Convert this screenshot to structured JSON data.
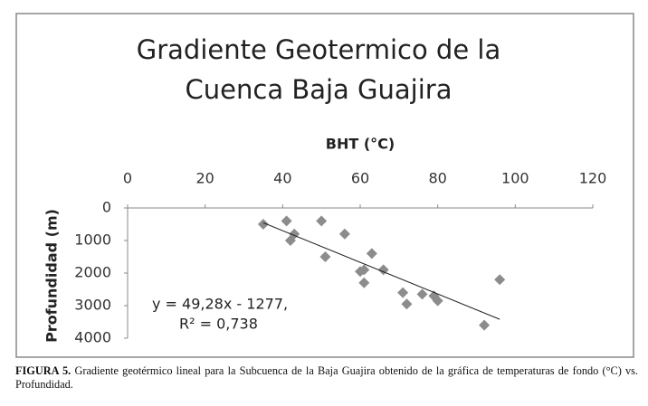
{
  "chart_data": {
    "type": "scatter",
    "title": [
      "Gradiente Geotermico de la",
      "Cuenca Baja Guajira"
    ],
    "x_label": "BHT (°C)",
    "y_label": "Profundidad (m)",
    "x": [
      35,
      41,
      42,
      43,
      50,
      51,
      56,
      60,
      61,
      61,
      63,
      66,
      71,
      72,
      76,
      79,
      80,
      92,
      96
    ],
    "values": [
      500,
      400,
      1000,
      800,
      400,
      1500,
      800,
      1950,
      2300,
      1900,
      1400,
      1900,
      2600,
      2950,
      2650,
      2700,
      2850,
      3600,
      2200
    ],
    "color": "#8c8c8c",
    "xlim": [
      0,
      120
    ],
    "xticks": [
      0,
      20,
      40,
      60,
      80,
      100,
      120
    ],
    "ylim": [
      0,
      4000
    ],
    "yticks": [
      0,
      1000,
      2000,
      3000,
      4000
    ],
    "y_inverted": true,
    "x_axis_position": "top",
    "grid": false,
    "trendline": true,
    "annotation": [
      "y = 49,28x - 1277,",
      "R² = 0,738"
    ]
  },
  "caption": {
    "label": "FIGURA 5.",
    "text": "Gradiente geotérmico lineal para la Subcuenca de la Baja Guajira obtenido de la gráfica de temperaturas de fondo (°C) vs. Profundidad."
  }
}
